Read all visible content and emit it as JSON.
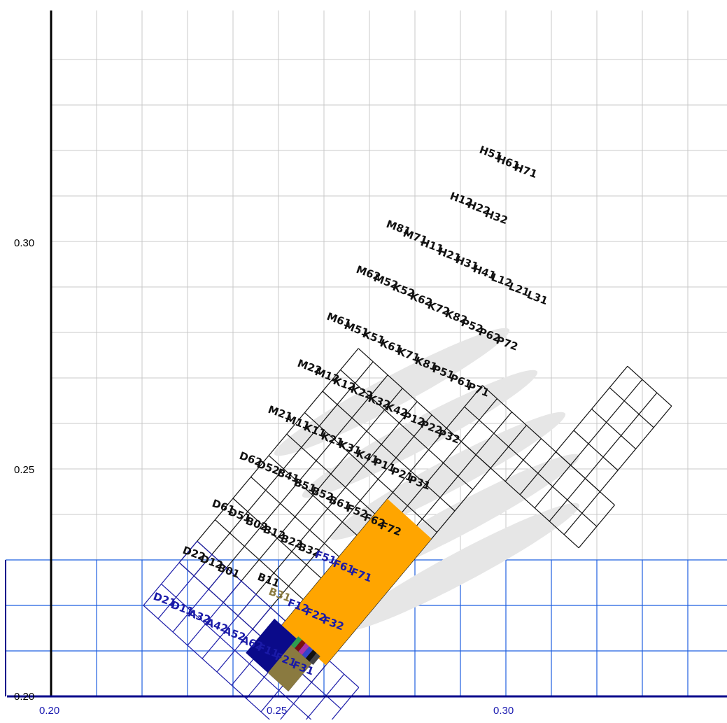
{
  "colors": {
    "background": "#ffffff",
    "grid_gray": "#c8c8c8",
    "grid_blue": "#1f5fe0",
    "axis_black": "#000000",
    "axis_blue": "#00008b",
    "label_black": "#111111",
    "label_blue": "#1a1aa8",
    "highlight_orange": "#ffa500",
    "highlight_navy": "#0a0a8a",
    "highlight_olive": "#8a7a40"
  },
  "chart_data": {
    "type": "grid-map",
    "title": "",
    "xlabel": "",
    "ylabel": "",
    "xlim": [
      0.2,
      0.3
    ],
    "ylim": [
      0.2,
      0.3
    ],
    "x_ticks": [
      "0.20",
      "0.25",
      "0.30"
    ],
    "y_ticks": [
      "0.20",
      "0.25",
      "0.30"
    ],
    "grid": true,
    "labels_black": [
      "H51",
      "H61",
      "H71",
      "H12",
      "H22",
      "H32",
      "M81",
      "M71",
      "H11",
      "H21",
      "H31",
      "H41",
      "L12",
      "L21",
      "L31",
      "M62",
      "M52",
      "K52",
      "K62",
      "K72",
      "K82",
      "P52",
      "P62",
      "P72",
      "M61",
      "M51",
      "K51",
      "K61",
      "K71",
      "K81",
      "P51",
      "P61",
      "P71",
      "M22",
      "M12",
      "K12",
      "K22",
      "K32",
      "K42",
      "P12",
      "P22",
      "P32",
      "M21",
      "M11",
      "K11",
      "K21",
      "K31",
      "K41",
      "P11",
      "P21",
      "P31",
      "D62",
      "D52",
      "B41",
      "B51",
      "B52",
      "B61",
      "F52",
      "F62",
      "F72",
      "D61",
      "D51",
      "B02",
      "B12",
      "B22",
      "B32",
      "D22",
      "D12",
      "B01",
      "B11"
    ],
    "labels_blue": [
      "F51",
      "F61",
      "F71",
      "D21",
      "D11",
      "A32",
      "A42",
      "A52",
      "A62",
      "F12",
      "F22",
      "F32",
      "F11",
      "F21",
      "F31"
    ],
    "labels_olive": [
      "B31"
    ]
  }
}
